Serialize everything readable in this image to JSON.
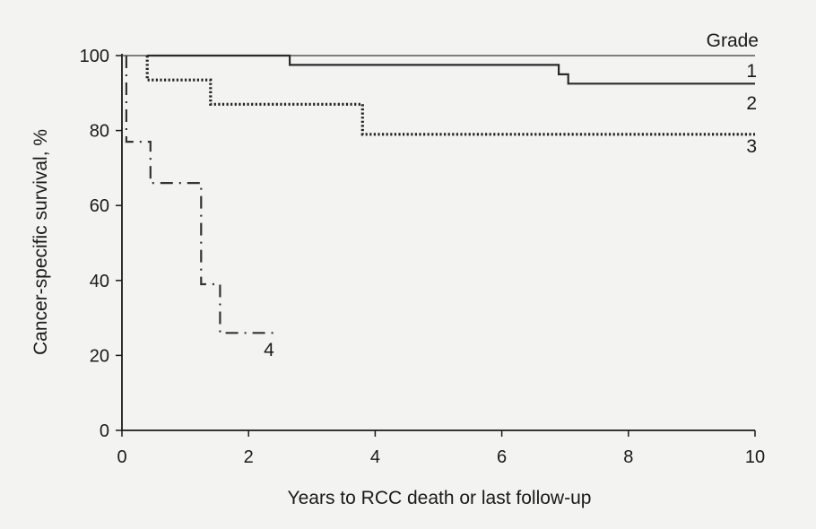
{
  "chart_data": {
    "type": "line",
    "subtype": "kaplan-meier step",
    "xlabel": "Years to RCC death or last follow-up",
    "ylabel": "Cancer-specific survival, %",
    "xlim": [
      0,
      10
    ],
    "ylim": [
      0,
      100
    ],
    "xticks": [
      "0",
      "2",
      "4",
      "6",
      "8",
      "10"
    ],
    "yticks": [
      "0",
      "20",
      "40",
      "60",
      "80",
      "100"
    ],
    "grid": false,
    "legend_title": "Grade",
    "series": [
      {
        "name": "1",
        "style": "thin-solid",
        "x": [
          0,
          10
        ],
        "y": [
          100,
          100
        ]
      },
      {
        "name": "2",
        "style": "thick-solid",
        "x": [
          0.4,
          0.4,
          2.65,
          2.65,
          6.9,
          6.9,
          7.05,
          7.05,
          10
        ],
        "y": [
          100,
          100,
          100,
          97.5,
          97.5,
          95,
          95,
          92.5,
          92.5
        ]
      },
      {
        "name": "3",
        "style": "dotted",
        "x": [
          0.4,
          0.4,
          1.4,
          1.4,
          3.8,
          3.8,
          10
        ],
        "y": [
          100,
          93.5,
          93.5,
          87,
          87,
          79,
          79
        ]
      },
      {
        "name": "4",
        "style": "dash-dot",
        "x": [
          0.07,
          0.07,
          0.45,
          0.45,
          1.25,
          1.25,
          1.55,
          1.55,
          2.45
        ],
        "y": [
          100,
          77,
          77,
          66,
          66,
          39,
          39,
          26,
          26
        ]
      }
    ]
  }
}
